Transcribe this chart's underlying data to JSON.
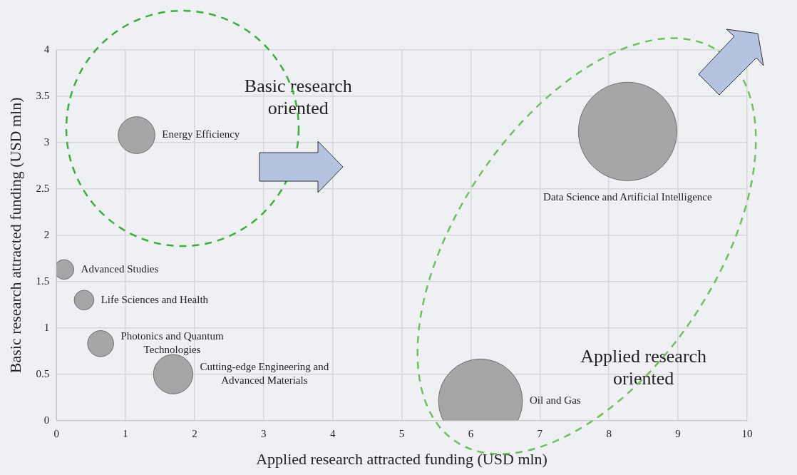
{
  "chart_data": {
    "type": "bubble",
    "xlabel": "Applied research attracted funding (USD mln)",
    "ylabel": "Basic research attracted funding (USD mln)",
    "xlim": [
      0,
      10
    ],
    "xticks": [
      0,
      1,
      2,
      3,
      4,
      5,
      6,
      7,
      8,
      9,
      10
    ],
    "ylim": [
      0,
      4
    ],
    "yticks": [
      0,
      0.5,
      1,
      1.5,
      2,
      2.5,
      3,
      3.5,
      4
    ],
    "grid": true,
    "legend": false,
    "annotations": [
      "Basic research oriented",
      "Applied research oriented"
    ],
    "series": [
      {
        "name": "Energy Efficiency",
        "color": "#a6a6a6",
        "x": [
          1.16
        ],
        "values": [
          3.08
        ],
        "sizes": [
          0.14
        ]
      },
      {
        "name": "Advanced Studies",
        "color": "#a6a6a6",
        "x": [
          0.11
        ],
        "values": [
          1.63
        ],
        "sizes": [
          0.04
        ]
      },
      {
        "name": "Life Sciences and Health",
        "color": "#a6a6a6",
        "x": [
          0.4
        ],
        "values": [
          1.3
        ],
        "sizes": [
          0.04
        ]
      },
      {
        "name": "Photonics and Quantum Technologies",
        "color": "#a6a6a6",
        "x": [
          0.64
        ],
        "values": [
          0.83
        ],
        "sizes": [
          0.07
        ]
      },
      {
        "name": "Cutting-edge Engineering and Advanced Materials",
        "color": "#a6a6a6",
        "x": [
          1.69
        ],
        "values": [
          0.5
        ],
        "sizes": [
          0.16
        ]
      },
      {
        "name": "Oil and Gas",
        "color": "#a6a6a6",
        "x": [
          6.14
        ],
        "values": [
          0.21
        ],
        "sizes": [
          0.73
        ]
      },
      {
        "name": "Data Science and Artificial Intelligence",
        "color": "#a6a6a6",
        "x": [
          8.27
        ],
        "values": [
          3.12
        ],
        "sizes": [
          1
        ]
      }
    ]
  }
}
